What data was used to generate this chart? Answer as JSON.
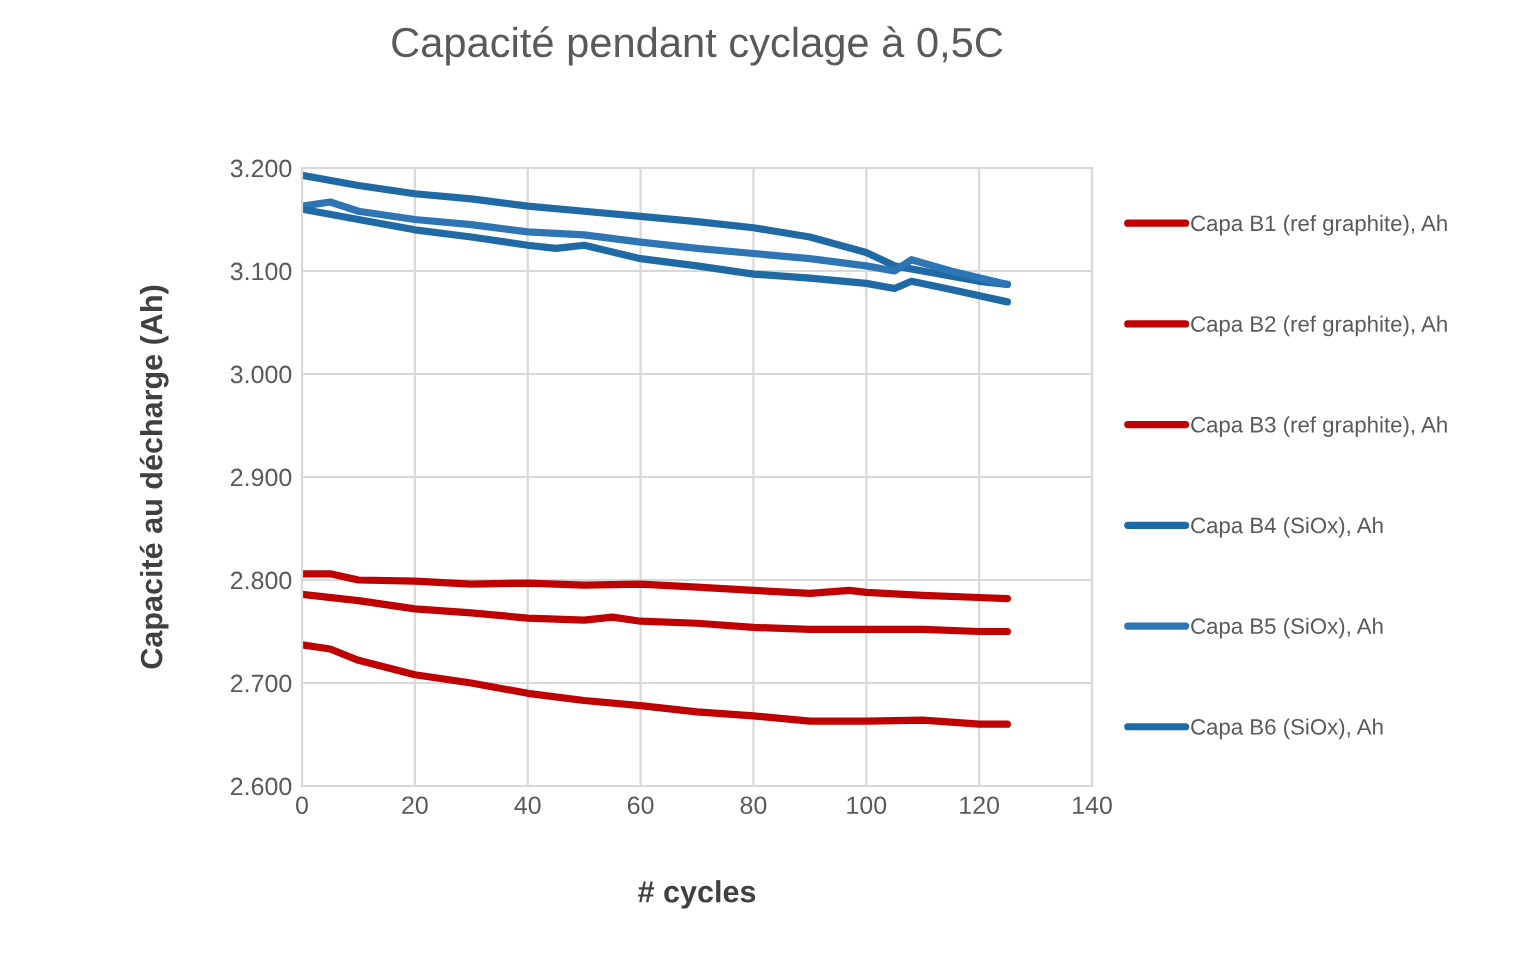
{
  "chart_data": {
    "type": "line",
    "title": "Capacité pendant cyclage à 0,5C",
    "xlabel": "# cycles",
    "ylabel": "Capacité au décharge (Ah)",
    "xlim": [
      0,
      140
    ],
    "xticks": [
      0,
      20,
      40,
      60,
      80,
      100,
      120,
      140
    ],
    "ylim": [
      2.6,
      3.2
    ],
    "yticks": [
      {
        "value": 2.6,
        "label": "2.600"
      },
      {
        "value": 2.7,
        "label": "2.700"
      },
      {
        "value": 2.8,
        "label": "2.800"
      },
      {
        "value": 2.9,
        "label": "2.900"
      },
      {
        "value": 3.0,
        "label": "3.000"
      },
      {
        "value": 3.1,
        "label": "3.100"
      },
      {
        "value": 3.2,
        "label": "3.200"
      }
    ],
    "grid": true,
    "legend": "right",
    "marker": "none",
    "line_style": "solid",
    "series": [
      {
        "name": "Capa B1 (ref graphite), Ah",
        "color": "#c00000",
        "x": [
          0,
          5,
          10,
          20,
          30,
          40,
          50,
          60,
          70,
          80,
          90,
          97,
          100,
          110,
          120,
          125
        ],
        "values": [
          2.806,
          2.806,
          2.8,
          2.799,
          2.796,
          2.797,
          2.795,
          2.796,
          2.793,
          2.79,
          2.787,
          2.79,
          2.788,
          2.785,
          2.783,
          2.782
        ]
      },
      {
        "name": "Capa B2 (ref graphite), Ah",
        "color": "#c00000",
        "x": [
          0,
          10,
          20,
          30,
          40,
          50,
          55,
          60,
          70,
          80,
          90,
          100,
          110,
          120,
          125
        ],
        "values": [
          2.786,
          2.78,
          2.772,
          2.768,
          2.763,
          2.761,
          2.764,
          2.76,
          2.758,
          2.754,
          2.752,
          2.752,
          2.752,
          2.75,
          2.75
        ]
      },
      {
        "name": "Capa B3 (ref graphite), Ah",
        "color": "#c00000",
        "x": [
          0,
          5,
          10,
          20,
          30,
          40,
          50,
          60,
          70,
          80,
          90,
          100,
          110,
          120,
          125
        ],
        "values": [
          2.737,
          2.733,
          2.722,
          2.708,
          2.7,
          2.69,
          2.683,
          2.678,
          2.672,
          2.668,
          2.663,
          2.663,
          2.664,
          2.66,
          2.66
        ]
      },
      {
        "name": "Capa B4 (SiOx), Ah",
        "color": "#1f6aa5",
        "x": [
          0,
          10,
          20,
          30,
          40,
          50,
          60,
          70,
          80,
          90,
          100,
          105,
          110,
          120,
          125
        ],
        "values": [
          3.193,
          3.183,
          3.175,
          3.17,
          3.163,
          3.158,
          3.153,
          3.148,
          3.142,
          3.133,
          3.118,
          3.105,
          3.1,
          3.09,
          3.087
        ]
      },
      {
        "name": "Capa B5 (SiOx), Ah",
        "color": "#2e75b6",
        "x": [
          0,
          5,
          10,
          20,
          30,
          40,
          50,
          60,
          70,
          80,
          90,
          100,
          105,
          108,
          115,
          125
        ],
        "values": [
          3.163,
          3.167,
          3.158,
          3.15,
          3.145,
          3.138,
          3.135,
          3.128,
          3.122,
          3.117,
          3.112,
          3.105,
          3.1,
          3.111,
          3.1,
          3.087
        ]
      },
      {
        "name": "Capa B6 (SiOx), Ah",
        "color": "#1f6aa5",
        "x": [
          0,
          10,
          20,
          30,
          40,
          45,
          50,
          60,
          70,
          80,
          90,
          100,
          105,
          108,
          115,
          125
        ],
        "values": [
          3.16,
          3.15,
          3.14,
          3.133,
          3.125,
          3.122,
          3.125,
          3.112,
          3.105,
          3.097,
          3.093,
          3.088,
          3.083,
          3.09,
          3.082,
          3.07
        ]
      }
    ]
  }
}
